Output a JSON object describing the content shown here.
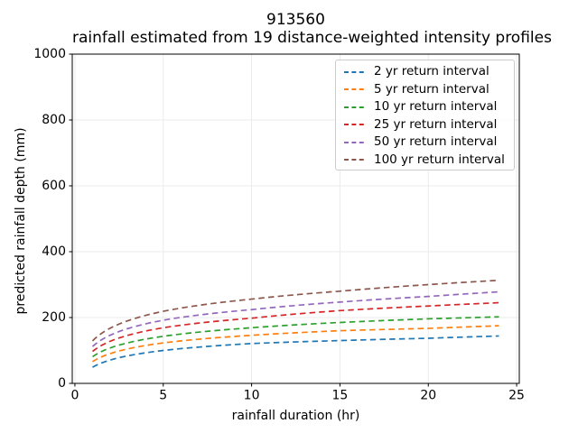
{
  "chart_data": {
    "type": "line",
    "title": "913560",
    "subtitle": "rainfall estimated from 19 distance-weighted intensity profiles",
    "xlabel": "rainfall duration (hr)",
    "ylabel": "predicted rainfall depth (mm)",
    "xlim": [
      -0.15,
      25.15
    ],
    "ylim": [
      0,
      1000
    ],
    "xticks": [
      0,
      5,
      10,
      15,
      20,
      25
    ],
    "yticks": [
      0,
      200,
      400,
      600,
      800,
      1000
    ],
    "grid": true,
    "grid_color": "#ebebeb",
    "line_style": "dashed",
    "line_width": 1.7,
    "legend_position": "upper right",
    "legend_frame_color": "#cbcbcb",
    "x": [
      1,
      5,
      10,
      15,
      20,
      24
    ],
    "series": [
      {
        "name": "2 yr return interval",
        "color": "#1f77b4",
        "values": [
          49,
          100,
          121,
          130,
          137,
          144
        ]
      },
      {
        "name": "5 yr return interval",
        "color": "#ff7f0e",
        "values": [
          66,
          123,
          146,
          160,
          167,
          175
        ]
      },
      {
        "name": "10 yr return interval",
        "color": "#2ca02c",
        "values": [
          81,
          143,
          169,
          185,
          196,
          202
        ]
      },
      {
        "name": "25 yr return interval",
        "color": "#d62728",
        "values": [
          97,
          169,
          198,
          221,
          235,
          245
        ]
      },
      {
        "name": "50 yr return interval",
        "color": "#9467bd",
        "values": [
          112,
          192,
          224,
          247,
          264,
          278
        ]
      },
      {
        "name": "100 yr return interval",
        "color": "#8c564b",
        "values": [
          129,
          219,
          256,
          280,
          300,
          313
        ]
      }
    ]
  }
}
